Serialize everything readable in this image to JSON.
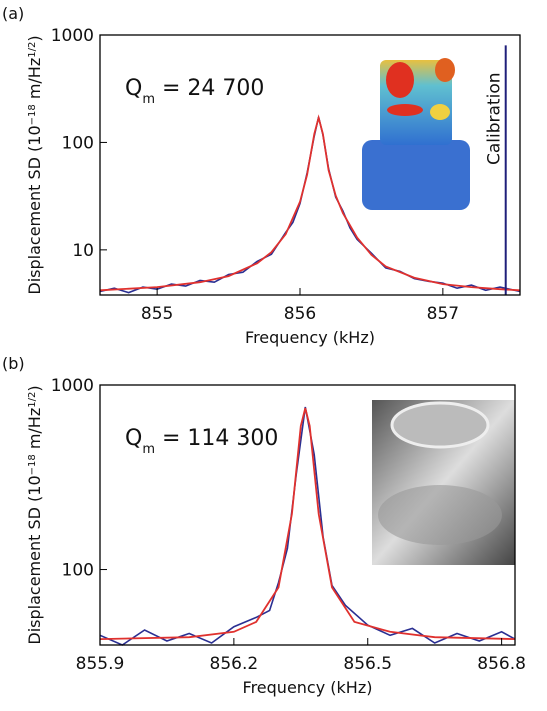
{
  "chart_data": [
    {
      "type": "line",
      "panel": "(a)",
      "xlabel": "Frequency (kHz)",
      "ylabel": [
        "Displacement SD (10",
        "−18",
        " m/Hz",
        "1/2",
        ")"
      ],
      "annotation": {
        "text": "Q",
        "subscript": "m",
        "rest": " = 24 700"
      },
      "log_y": true,
      "xlim": [
        854.6,
        857.54
      ],
      "ylim": [
        3.8,
        1000
      ],
      "xticks": [
        855,
        856,
        857
      ],
      "yticks": [
        10,
        100,
        1000
      ],
      "calibration": {
        "label": "Calibration",
        "x": 857.44,
        "value": 800,
        "color": "#1f1f7a"
      },
      "series": [
        {
          "color": "#2a2f92",
          "x": [
            854.6,
            854.7,
            854.8,
            854.9,
            855.0,
            855.1,
            855.2,
            855.3,
            855.4,
            855.5,
            855.6,
            855.7,
            855.8,
            855.9,
            855.95,
            856.0,
            856.05,
            856.1,
            856.13,
            856.16,
            856.2,
            856.25,
            856.3,
            856.35,
            856.4,
            856.5,
            856.6,
            856.7,
            856.8,
            856.9,
            857.0,
            857.1,
            857.2,
            857.3,
            857.4,
            857.54
          ],
          "values": [
            4.1,
            4.4,
            4.0,
            4.5,
            4.3,
            4.8,
            4.6,
            5.2,
            5.0,
            5.9,
            6.2,
            7.8,
            9.1,
            14.5,
            18,
            27,
            52,
            115,
            172,
            118,
            57,
            31,
            23,
            16,
            12.5,
            9.3,
            6.8,
            6.3,
            5.4,
            5.1,
            4.9,
            4.4,
            4.7,
            4.2,
            4.5,
            4.1
          ]
        },
        {
          "color": "#e0312e",
          "x": [
            854.6,
            855.0,
            855.3,
            855.5,
            855.7,
            855.8,
            855.9,
            856.0,
            856.05,
            856.1,
            856.13,
            856.16,
            856.2,
            856.25,
            856.3,
            856.4,
            856.5,
            856.6,
            856.8,
            857.0,
            857.2,
            857.4,
            857.54
          ],
          "values": [
            4.2,
            4.5,
            5.0,
            5.7,
            7.5,
            9.5,
            14,
            28,
            50,
            120,
            170,
            120,
            55,
            32,
            22,
            13,
            9,
            7,
            5.5,
            4.8,
            4.5,
            4.3,
            4.2
          ]
        }
      ]
    },
    {
      "type": "line",
      "panel": "(b)",
      "xlabel": "Frequency (kHz)",
      "ylabel": [
        "Displacement SD (10",
        "−18",
        " m/Hz",
        "1/2",
        ")"
      ],
      "annotation": {
        "text": "Q",
        "subscript": "m",
        "rest": " = 114 300"
      },
      "log_y": true,
      "xlim": [
        855.9,
        856.83
      ],
      "ylim": [
        39,
        1000
      ],
      "xticks": [
        855.9,
        856.2,
        856.5,
        856.8
      ],
      "yticks": [
        100,
        1000
      ],
      "series": [
        {
          "color": "#2a2f92",
          "x": [
            855.9,
            855.95,
            856.0,
            856.05,
            856.1,
            856.15,
            856.2,
            856.25,
            856.28,
            856.3,
            856.32,
            856.34,
            856.36,
            856.38,
            856.4,
            856.42,
            856.45,
            856.5,
            856.55,
            856.6,
            856.65,
            856.7,
            856.75,
            856.8,
            856.83
          ],
          "values": [
            44,
            39,
            47,
            41,
            45,
            40,
            49,
            55,
            60,
            85,
            130,
            330,
            760,
            420,
            150,
            82,
            64,
            50,
            44,
            48,
            40,
            45,
            41,
            46,
            42
          ]
        },
        {
          "color": "#e0312e",
          "x": [
            855.9,
            856.1,
            856.2,
            856.25,
            856.3,
            856.33,
            856.35,
            856.36,
            856.37,
            856.39,
            856.42,
            856.47,
            856.55,
            856.65,
            856.83
          ],
          "values": [
            42,
            43,
            46,
            52,
            80,
            200,
            600,
            750,
            600,
            200,
            80,
            52,
            46,
            43,
            42
          ]
        }
      ]
    }
  ]
}
